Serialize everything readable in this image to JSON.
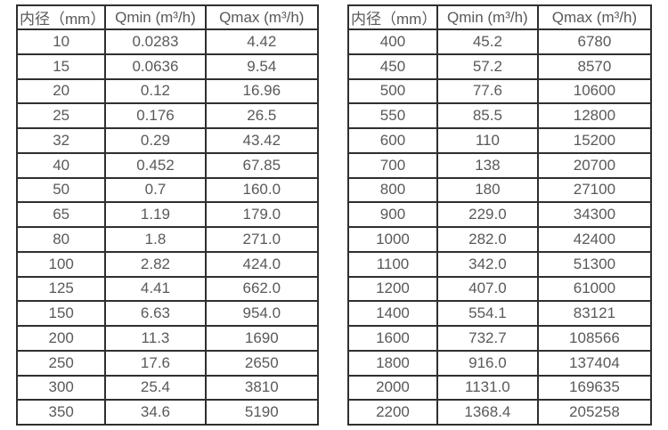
{
  "colors": {
    "border": "#2f2f2f",
    "text": "#595959",
    "background": "#ffffff"
  },
  "tables": [
    {
      "name": "flow-spec-table-small-diameters",
      "headers": [
        "内径（mm）",
        "Qmin (m³/h)",
        "Qmax (m³/h)"
      ],
      "rows": [
        [
          "10",
          "0.0283",
          "4.42"
        ],
        [
          "15",
          "0.0636",
          "9.54"
        ],
        [
          "20",
          "0.12",
          "16.96"
        ],
        [
          "25",
          "0.176",
          "26.5"
        ],
        [
          "32",
          "0.29",
          "43.42"
        ],
        [
          "40",
          "0.452",
          "67.85"
        ],
        [
          "50",
          "0.7",
          "160.0"
        ],
        [
          "65",
          "1.19",
          "179.0"
        ],
        [
          "80",
          "1.8",
          "271.0"
        ],
        [
          "100",
          "2.82",
          "424.0"
        ],
        [
          "125",
          "4.41",
          "662.0"
        ],
        [
          "150",
          "6.63",
          "954.0"
        ],
        [
          "200",
          "11.3",
          "1690"
        ],
        [
          "250",
          "17.6",
          "2650"
        ],
        [
          "300",
          "25.4",
          "3810"
        ],
        [
          "350",
          "34.6",
          "5190"
        ]
      ]
    },
    {
      "name": "flow-spec-table-large-diameters",
      "headers": [
        "内径（mm）",
        "Qmin (m³/h)",
        "Qmax (m³/h)"
      ],
      "rows": [
        [
          "400",
          "45.2",
          "6780"
        ],
        [
          "450",
          "57.2",
          "8570"
        ],
        [
          "500",
          "77.6",
          "10600"
        ],
        [
          "550",
          "85.5",
          "12800"
        ],
        [
          "600",
          "110",
          "15200"
        ],
        [
          "700",
          "138",
          "20700"
        ],
        [
          "800",
          "180",
          "27100"
        ],
        [
          "900",
          "229.0",
          "34300"
        ],
        [
          "1000",
          "282.0",
          "42400"
        ],
        [
          "1100",
          "342.0",
          "51300"
        ],
        [
          "1200",
          "407.0",
          "61000"
        ],
        [
          "1400",
          "554.1",
          "83121"
        ],
        [
          "1600",
          "732.7",
          "108566"
        ],
        [
          "1800",
          "916.0",
          "137404"
        ],
        [
          "2000",
          "1131.0",
          "169635"
        ],
        [
          "2200",
          "1368.4",
          "205258"
        ]
      ]
    }
  ]
}
